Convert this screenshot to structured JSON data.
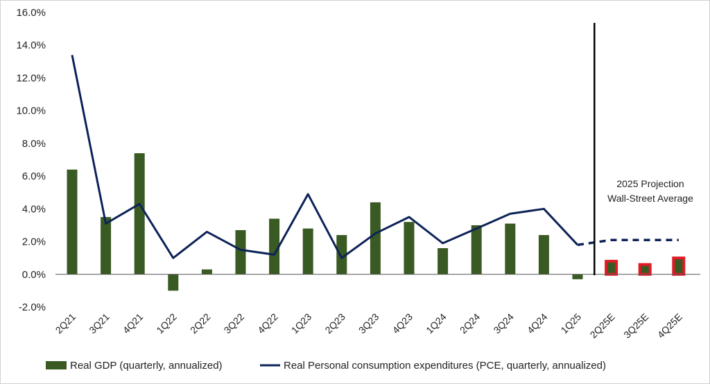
{
  "colors": {
    "bar": "#3a5a24",
    "line": "#0d2257",
    "projection_marker": "#e01b24",
    "vline": "#000000",
    "zero_line": "#555555"
  },
  "chart_data": {
    "type": "bar",
    "title": "",
    "xlabel": "",
    "ylabel": "",
    "ylim": [
      -2.0,
      16.0
    ],
    "yticks": [
      "-2.0%",
      "0.0%",
      "2.0%",
      "4.0%",
      "6.0%",
      "8.0%",
      "10.0%",
      "12.0%",
      "14.0%",
      "16.0%"
    ],
    "categories": [
      "2Q21",
      "3Q21",
      "4Q21",
      "1Q22",
      "2Q22",
      "3Q22",
      "4Q22",
      "1Q23",
      "2Q23",
      "3Q23",
      "4Q23",
      "1Q24",
      "2Q24",
      "3Q24",
      "4Q24",
      "1Q25",
      "2Q25E",
      "3Q25E",
      "4Q25E"
    ],
    "series": [
      {
        "name": "Real GDP (quarterly, annualized)",
        "type": "bar",
        "values": [
          6.4,
          3.5,
          7.4,
          -1.0,
          0.3,
          2.7,
          3.4,
          2.8,
          2.4,
          4.4,
          3.2,
          1.6,
          3.0,
          3.1,
          2.4,
          -0.3,
          0.8,
          0.6,
          1.0
        ],
        "projected_from_index": 16
      },
      {
        "name": "Real Personal consumption expenditures (PCE, quarterly, annualized)",
        "type": "line",
        "values": [
          13.4,
          3.1,
          4.3,
          1.0,
          2.6,
          1.5,
          1.2,
          4.9,
          1.0,
          2.5,
          3.5,
          1.9,
          2.8,
          3.7,
          4.0,
          1.8,
          2.1,
          2.1,
          2.1
        ],
        "projected_from_index": 16
      }
    ],
    "annotations": [
      "2025 Projection",
      "Wall-Street Average"
    ],
    "projection_divider_after": "1Q25",
    "legend_position": "bottom",
    "grid": false
  }
}
